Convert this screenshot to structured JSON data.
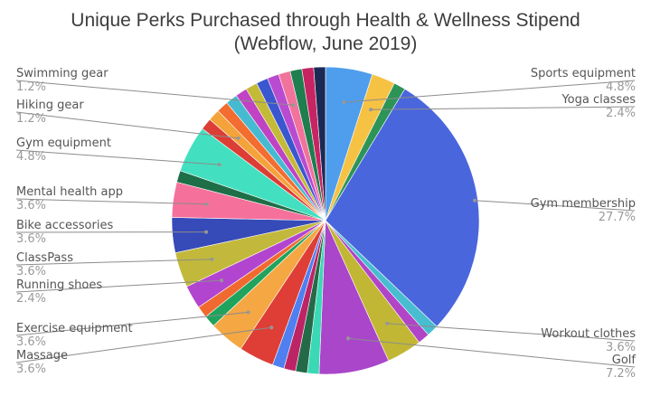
{
  "chart_data": {
    "type": "pie",
    "title": "Unique Perks Purchased through Health & Wellness Stipend\n(Webflow, June 2019)",
    "start_angle_deg": 0,
    "direction": "clockwise",
    "slices": [
      {
        "label": "Sports equipment",
        "value": 4.8,
        "display": "4.8%",
        "color": "#4f9ded",
        "labeled": true
      },
      {
        "label": "Yoga classes",
        "value": 2.4,
        "display": "2.4%",
        "color": "#f6c244",
        "labeled": true
      },
      {
        "label": "",
        "value": 1.2,
        "color": "#2c9457",
        "labeled": false
      },
      {
        "label": "Gym membership",
        "value": 27.7,
        "display": "27.7%",
        "color": "#4a66dd",
        "labeled": true
      },
      {
        "label": "",
        "value": 1.2,
        "color": "#48bdd0",
        "labeled": false
      },
      {
        "label": "",
        "value": 1.2,
        "color": "#b045c7",
        "labeled": false
      },
      {
        "label": "Workout clothes",
        "value": 3.6,
        "display": "3.6%",
        "color": "#c1b734",
        "labeled": true
      },
      {
        "label": "Golf",
        "value": 7.2,
        "display": "7.2%",
        "color": "#a946c9",
        "labeled": true
      },
      {
        "label": "",
        "value": 1.2,
        "color": "#3bd8b5",
        "labeled": false
      },
      {
        "label": "",
        "value": 1.2,
        "color": "#256a48",
        "labeled": false
      },
      {
        "label": "",
        "value": 1.2,
        "color": "#bd2465",
        "labeled": false
      },
      {
        "label": "",
        "value": 1.2,
        "color": "#4f7ff0",
        "labeled": false
      },
      {
        "label": "Massage",
        "value": 3.6,
        "display": "3.6%",
        "color": "#de3e36",
        "labeled": true
      },
      {
        "label": "Exercise equipment",
        "value": 3.6,
        "display": "3.6%",
        "color": "#f4a742",
        "labeled": true
      },
      {
        "label": "",
        "value": 1.2,
        "color": "#20a35d",
        "labeled": false
      },
      {
        "label": "",
        "value": 1.2,
        "color": "#f06a30",
        "labeled": false
      },
      {
        "label": "Running shoes",
        "value": 2.4,
        "display": "2.4%",
        "color": "#b245d0",
        "labeled": true
      },
      {
        "label": "ClassPass",
        "value": 3.6,
        "display": "3.6%",
        "color": "#c2b93c",
        "labeled": true
      },
      {
        "label": "Bike accessories",
        "value": 3.6,
        "display": "3.6%",
        "color": "#364ab8",
        "labeled": true
      },
      {
        "label": "Mental health app",
        "value": 3.6,
        "display": "3.6%",
        "color": "#f5709b",
        "labeled": true
      },
      {
        "label": "",
        "value": 1.2,
        "color": "#1e6f48",
        "labeled": false
      },
      {
        "label": "Gym equipment",
        "value": 4.8,
        "display": "4.8%",
        "color": "#42e0c0",
        "labeled": true
      },
      {
        "label": "",
        "value": 1.2,
        "color": "#dc3d35",
        "labeled": false
      },
      {
        "label": "Hiking gear",
        "value": 1.2,
        "display": "1.2%",
        "color": "#f4a23a",
        "labeled": true
      },
      {
        "label": "",
        "value": 1.2,
        "color": "#f36d30",
        "labeled": false
      },
      {
        "label": "",
        "value": 1.2,
        "color": "#46bad0",
        "labeled": false
      },
      {
        "label": "",
        "value": 1.2,
        "color": "#c043c4",
        "labeled": false
      },
      {
        "label": "",
        "value": 1.2,
        "color": "#c3ba38",
        "labeled": false
      },
      {
        "label": "",
        "value": 1.2,
        "color": "#3b57cf",
        "labeled": false
      },
      {
        "label": "",
        "value": 1.2,
        "color": "#b94bd0",
        "labeled": false
      },
      {
        "label": "Swimming gear",
        "value": 1.2,
        "display": "1.2%",
        "color": "#f1739c",
        "labeled": true
      },
      {
        "label": "",
        "value": 1.2,
        "color": "#1f7e4e",
        "labeled": false
      },
      {
        "label": "",
        "value": 1.2,
        "color": "#c72463",
        "labeled": false
      },
      {
        "label": "",
        "value": 1.2,
        "color": "#1b2a55",
        "labeled": false
      }
    ]
  }
}
